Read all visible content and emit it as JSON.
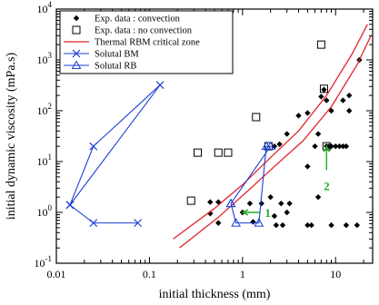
{
  "chart_data": {
    "type": "scatter",
    "xlabel": "initial thickness (mm)",
    "ylabel": "initial dynamic viscosity  (mPa.s)",
    "xscale": "log",
    "yscale": "log",
    "xlim": [
      0.01,
      25
    ],
    "ylim": [
      0.1,
      10000
    ],
    "grid": false,
    "legend_position": "top-left",
    "x_tick_labels": [
      {
        "value": 0.01,
        "label": "0.01"
      },
      {
        "value": 0.1,
        "label": "0.1"
      },
      {
        "value": 1,
        "label": "1"
      },
      {
        "value": 10,
        "label": "10"
      }
    ],
    "y_tick_labels": [
      {
        "value": 0.1,
        "base": "10",
        "exp": "-1"
      },
      {
        "value": 1,
        "base": "10",
        "exp": "0"
      },
      {
        "value": 10,
        "base": "10",
        "exp": "1"
      },
      {
        "value": 100,
        "base": "10",
        "exp": "2"
      },
      {
        "value": 1000,
        "base": "10",
        "exp": "3"
      },
      {
        "value": 10000,
        "base": "10",
        "exp": "4"
      }
    ],
    "series": [
      {
        "name": "Exp. data : convection",
        "marker": "diamond",
        "color": "#000000",
        "points": [
          [
            2.2,
            20
          ],
          [
            2.5,
            22
          ],
          [
            3.0,
            35
          ],
          [
            4.0,
            80
          ],
          [
            5.0,
            90
          ],
          [
            6.0,
            20
          ],
          [
            6.5,
            35
          ],
          [
            7.0,
            190
          ],
          [
            7.5,
            260
          ],
          [
            8.0,
            20
          ],
          [
            8.5,
            20
          ],
          [
            9.0,
            20
          ],
          [
            10,
            20
          ],
          [
            11,
            20
          ],
          [
            12,
            20
          ],
          [
            13,
            20
          ],
          [
            14,
            200
          ],
          [
            18,
            1000
          ],
          [
            8.0,
            160
          ],
          [
            12,
            160
          ],
          [
            9.0,
            100
          ],
          [
            14,
            100
          ],
          [
            5.0,
            8
          ],
          [
            1.2,
            1.5
          ],
          [
            1.6,
            1.5
          ],
          [
            2.0,
            2.0
          ],
          [
            2.6,
            1.5
          ],
          [
            3.2,
            1.5
          ],
          [
            6.5,
            2.0
          ],
          [
            0.45,
            1.6
          ],
          [
            0.55,
            1.6
          ],
          [
            1.0,
            1.0
          ],
          [
            2.2,
            0.85
          ],
          [
            3.0,
            1.0
          ],
          [
            0.45,
            0.95
          ],
          [
            0.55,
            0.62
          ],
          [
            1.3,
            0.65
          ],
          [
            2.3,
            0.56
          ],
          [
            2.7,
            0.56
          ],
          [
            5.0,
            0.56
          ],
          [
            5.5,
            0.56
          ],
          [
            9.0,
            0.56
          ],
          [
            13,
            0.56
          ],
          [
            17,
            0.56
          ]
        ]
      },
      {
        "name": "Exp. data : no convection",
        "marker": "square",
        "color": "#000000",
        "points": [
          [
            0.28,
            1.7
          ],
          [
            0.33,
            15
          ],
          [
            0.55,
            15
          ],
          [
            0.7,
            15
          ],
          [
            1.4,
            75
          ],
          [
            1.9,
            20
          ],
          [
            7.0,
            2000
          ],
          [
            7.5,
            270
          ],
          [
            8.0,
            20
          ]
        ]
      },
      {
        "name": "Thermal RBM critical zone",
        "marker": "none",
        "color": "#e0242b",
        "lines": [
          [
            [
              0.18,
              0.3
            ],
            [
              0.5,
              1.2
            ],
            [
              1.0,
              3.5
            ],
            [
              2.0,
              12
            ],
            [
              4.0,
              40
            ],
            [
              8.0,
              200
            ],
            [
              15,
              1300
            ],
            [
              22,
              5000
            ]
          ],
          [
            [
              0.21,
              0.2
            ],
            [
              0.55,
              0.8
            ],
            [
              1.1,
              2.5
            ],
            [
              2.2,
              8
            ],
            [
              4.5,
              26
            ],
            [
              9.0,
              120
            ],
            [
              17,
              800
            ],
            [
              24,
              3000
            ]
          ]
        ]
      },
      {
        "name": "Solutal BM",
        "marker": "x",
        "color": "#1a3fd6",
        "points": [
          [
            0.014,
            1.4
          ],
          [
            0.025,
            20
          ],
          [
            0.13,
            320
          ],
          [
            0.014,
            1.4
          ],
          [
            0.025,
            0.62
          ],
          [
            0.075,
            0.62
          ]
        ]
      },
      {
        "name": "Solutal RB",
        "marker": "triangle",
        "color": "#1a3fd6",
        "points": [
          [
            0.75,
            1.5
          ],
          [
            0.85,
            0.62
          ],
          [
            1.5,
            0.62
          ],
          [
            1.8,
            20
          ],
          [
            2.0,
            20
          ],
          [
            0.75,
            1.5
          ]
        ]
      }
    ],
    "annotations": [
      {
        "label": "1",
        "color": "#22aa22",
        "target": [
          1.0,
          1.0
        ],
        "label_at": [
          1.9,
          1.0
        ]
      },
      {
        "label": "2",
        "color": "#22aa22",
        "target": [
          8.0,
          20
        ],
        "label_at": [
          8.0,
          4.5
        ]
      }
    ]
  }
}
